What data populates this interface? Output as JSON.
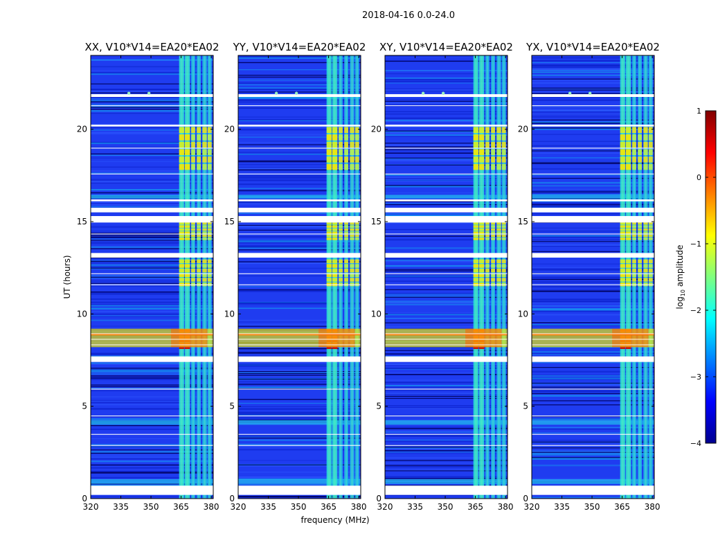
{
  "figure": {
    "suptitle": "2018-04-16 0.0-24.0",
    "shared_xlabel": "frequency (MHz)"
  },
  "chart_data": [
    {
      "type": "heatmap",
      "title": "XX, V10*V14=EA20*EA02",
      "xlabel": "",
      "ylabel": "UT (hours)",
      "xlim": [
        320,
        381
      ],
      "ylim": [
        0,
        24
      ],
      "xticks": [
        "320",
        "335",
        "350",
        "365",
        "380"
      ],
      "yticks": [
        "0",
        "5",
        "10",
        "15",
        "20"
      ]
    },
    {
      "type": "heatmap",
      "title": "YY, V10*V14=EA20*EA02",
      "xlabel": "frequency (MHz)",
      "ylabel": "",
      "xlim": [
        320,
        381
      ],
      "ylim": [
        0,
        24
      ],
      "xticks": [
        "320",
        "335",
        "350",
        "365",
        "380"
      ],
      "yticks": [
        "0",
        "5",
        "10",
        "15",
        "20"
      ]
    },
    {
      "type": "heatmap",
      "title": "XY, V10*V14=EA20*EA02",
      "xlabel": "",
      "ylabel": "",
      "xlim": [
        320,
        381
      ],
      "ylim": [
        0,
        24
      ],
      "xticks": [
        "320",
        "335",
        "350",
        "365",
        "380"
      ],
      "yticks": [
        "0",
        "5",
        "10",
        "15",
        "20"
      ]
    },
    {
      "type": "heatmap",
      "title": "YX, V10*V14=EA20*EA02",
      "xlabel": "",
      "ylabel": "",
      "xlim": [
        320,
        381
      ],
      "ylim": [
        0,
        24
      ],
      "xticks": [
        "320",
        "335",
        "350",
        "365",
        "380"
      ],
      "yticks": [
        "0",
        "5",
        "10",
        "15",
        "20"
      ]
    }
  ],
  "colorbar": {
    "label": "log10 amplitude",
    "label_base": "log",
    "label_sub": "10",
    "label_rest": " amplitude",
    "range": [
      -4,
      1
    ],
    "ticks": [
      "1",
      "0",
      "−1",
      "−2",
      "−3",
      "−4"
    ],
    "colormap": "jet"
  },
  "emission": {
    "bright_columns_mhz": [
      [
        364,
        366.5
      ],
      [
        366.8,
        369.4
      ],
      [
        370,
        372
      ],
      [
        372.8,
        374.8
      ],
      [
        375.6,
        377.8
      ],
      [
        378.2,
        380.2
      ]
    ],
    "flag_gap_hours": [
      [
        0.2,
        0.7
      ],
      [
        7.4,
        7.7
      ],
      [
        13.05,
        13.3
      ],
      [
        14.95,
        15.3
      ],
      [
        15.5,
        15.75
      ],
      [
        16.1,
        16.2
      ],
      [
        20.15,
        20.25
      ],
      [
        21.75,
        21.9
      ]
    ],
    "rfi_burst_hours": [
      8.2,
      9.2
    ],
    "strong_band_hours": [
      [
        8.1,
        9.2
      ],
      [
        11.5,
        13.0
      ],
      [
        14.0,
        15.0
      ],
      [
        17.8,
        20.2
      ]
    ]
  }
}
